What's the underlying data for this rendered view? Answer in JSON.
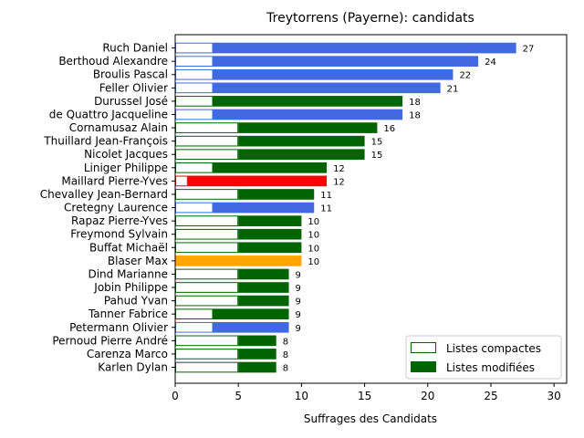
{
  "chart_data": {
    "type": "bar",
    "orientation": "horizontal",
    "stacked": true,
    "title": "Treytorrens (Payerne): candidats",
    "xlabel": "Suffrages des Candidats",
    "ylabel": "",
    "xlim": [
      0,
      31
    ],
    "xticks": [
      0,
      5,
      10,
      15,
      20,
      25,
      30
    ],
    "grid": false,
    "legend": {
      "position": "bottom-right",
      "entries": [
        {
          "label": "Listes compactes",
          "style": "outline",
          "color": "#006400"
        },
        {
          "label": "Listes modifiées",
          "style": "filled",
          "color": "#006400"
        }
      ]
    },
    "candidates": [
      {
        "name": "Ruch Daniel",
        "compact": 3,
        "total": 27,
        "color": "#4169e1"
      },
      {
        "name": "Berthoud Alexandre",
        "compact": 3,
        "total": 24,
        "color": "#4169e1"
      },
      {
        "name": "Broulis Pascal",
        "compact": 3,
        "total": 22,
        "color": "#4169e1"
      },
      {
        "name": "Feller Olivier",
        "compact": 3,
        "total": 21,
        "color": "#4169e1"
      },
      {
        "name": "Durussel José",
        "compact": 3,
        "total": 18,
        "color": "#006400"
      },
      {
        "name": "de Quattro Jacqueline",
        "compact": 3,
        "total": 18,
        "color": "#4169e1"
      },
      {
        "name": "Cornamusaz Alain",
        "compact": 5,
        "total": 16,
        "color": "#006400"
      },
      {
        "name": "Thuillard Jean-François",
        "compact": 5,
        "total": 15,
        "color": "#006400"
      },
      {
        "name": "Nicolet Jacques",
        "compact": 5,
        "total": 15,
        "color": "#006400"
      },
      {
        "name": "Liniger Philippe",
        "compact": 3,
        "total": 12,
        "color": "#006400"
      },
      {
        "name": "Maillard Pierre-Yves",
        "compact": 1,
        "total": 12,
        "color": "#ff0000"
      },
      {
        "name": "Chevalley Jean-Bernard",
        "compact": 5,
        "total": 11,
        "color": "#006400"
      },
      {
        "name": "Cretegny Laurence",
        "compact": 3,
        "total": 11,
        "color": "#4169e1"
      },
      {
        "name": "Rapaz Pierre-Yves",
        "compact": 5,
        "total": 10,
        "color": "#006400"
      },
      {
        "name": "Freymond Sylvain",
        "compact": 5,
        "total": 10,
        "color": "#006400"
      },
      {
        "name": "Buffat Michaël",
        "compact": 5,
        "total": 10,
        "color": "#006400"
      },
      {
        "name": "Blaser Max",
        "compact": 0,
        "total": 10,
        "color": "#ffa500"
      },
      {
        "name": "Dind Marianne",
        "compact": 5,
        "total": 9,
        "color": "#006400"
      },
      {
        "name": "Jobin Philippe",
        "compact": 5,
        "total": 9,
        "color": "#006400"
      },
      {
        "name": "Pahud Yvan",
        "compact": 5,
        "total": 9,
        "color": "#006400"
      },
      {
        "name": "Tanner Fabrice",
        "compact": 3,
        "total": 9,
        "color": "#006400"
      },
      {
        "name": "Petermann Olivier",
        "compact": 3,
        "total": 9,
        "color": "#4169e1"
      },
      {
        "name": "Pernoud Pierre André",
        "compact": 5,
        "total": 8,
        "color": "#006400"
      },
      {
        "name": "Carenza Marco",
        "compact": 5,
        "total": 8,
        "color": "#006400"
      },
      {
        "name": "Karlen Dylan",
        "compact": 5,
        "total": 8,
        "color": "#006400"
      }
    ]
  }
}
